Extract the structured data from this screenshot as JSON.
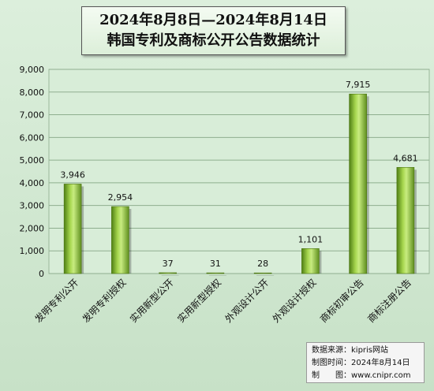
{
  "title": {
    "line1": "2024年8月8日—2024年8月14日",
    "line2": "韩国专利及商标公开公告数据统计"
  },
  "source": {
    "label1": "数据来源：",
    "value1": "kipris网站",
    "label2": "制图时间：",
    "value2": "2024年8月14日",
    "label3": "制　　图：",
    "value3": "www.cnipr.com"
  },
  "colors": {
    "bar_dark": "#5a8a1a",
    "bar_light": "#c5e87a",
    "plot_bg": "#d8edd8",
    "grid": "#8fb08f"
  },
  "chart_data": {
    "type": "bar",
    "categories": [
      "发明专利公开",
      "发明专利授权",
      "实用新型公开",
      "实用新型授权",
      "外观设计公开",
      "外观设计授权",
      "商标初审公告",
      "商标注册公告"
    ],
    "values": [
      3946,
      2954,
      37,
      31,
      28,
      1101,
      7915,
      4681
    ],
    "value_labels": [
      "3,946",
      "2,954",
      "37",
      "31",
      "28",
      "1,101",
      "7,915",
      "4,681"
    ],
    "ylim": [
      0,
      9000
    ],
    "yticks": [
      0,
      1000,
      2000,
      3000,
      4000,
      5000,
      6000,
      7000,
      8000,
      9000
    ],
    "ytick_labels": [
      "0",
      "1,000",
      "2,000",
      "3,000",
      "4,000",
      "5,000",
      "6,000",
      "7,000",
      "8,000",
      "9,000"
    ],
    "grid": true,
    "xlabel": "",
    "ylabel": ""
  }
}
